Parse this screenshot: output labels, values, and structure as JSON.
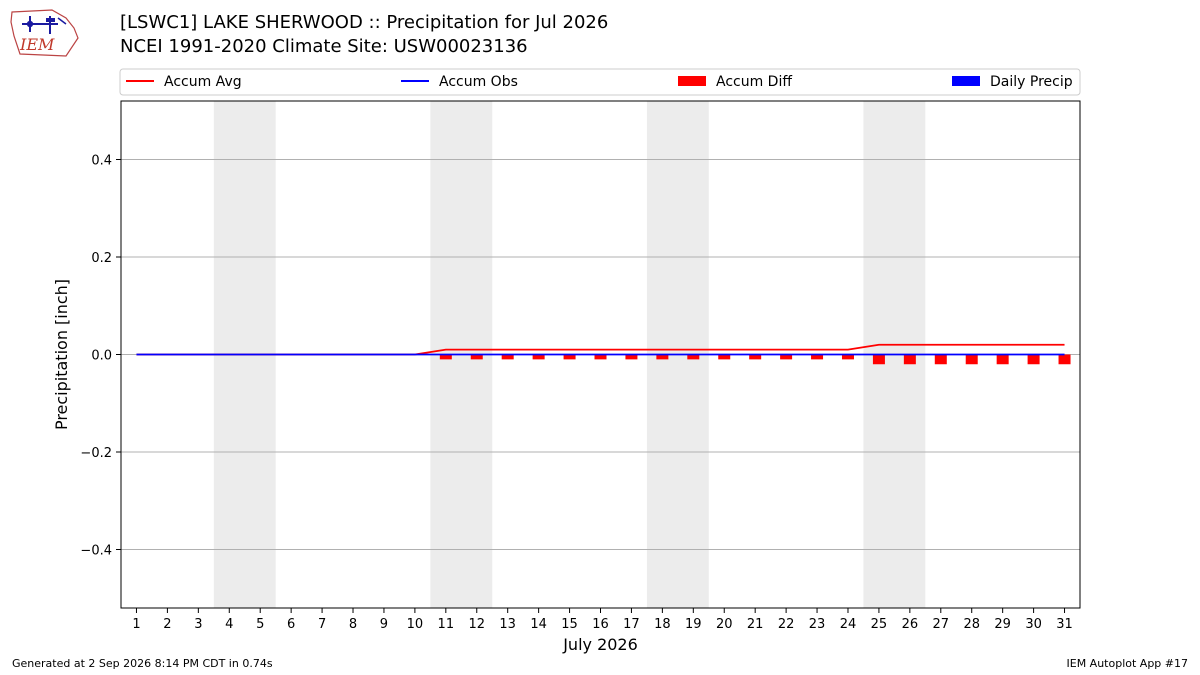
{
  "header": {
    "logo_text": "IEM",
    "title": "[LSWC1] LAKE SHERWOOD :: Precipitation for Jul 2026",
    "subtitle": "NCEI 1991-2020 Climate Site: USW00023136"
  },
  "footer": {
    "generated": "Generated at 2 Sep 2026 8:14 PM CDT in 0.74s",
    "app": "IEM Autoplot App #17"
  },
  "colors": {
    "accum_avg": "#ff0000",
    "accum_obs": "#0000ff",
    "accum_diff": "#ff0000",
    "daily_precip": "#0000ff",
    "weekend_band": "#ececec",
    "grid": "#b0b0b0"
  },
  "chart_data": {
    "type": "line",
    "xlabel": "July 2026",
    "ylabel": "Precipitation [inch]",
    "ylim": [
      -0.52,
      0.52
    ],
    "yticks": [
      -0.4,
      -0.2,
      0.0,
      0.2,
      0.4
    ],
    "ytick_labels": [
      "−0.4",
      "−0.2",
      "0.0",
      "0.2",
      "0.4"
    ],
    "x": [
      1,
      2,
      3,
      4,
      5,
      6,
      7,
      8,
      9,
      10,
      11,
      12,
      13,
      14,
      15,
      16,
      17,
      18,
      19,
      20,
      21,
      22,
      23,
      24,
      25,
      26,
      27,
      28,
      29,
      30,
      31
    ],
    "xtick_labels": [
      "1",
      "2",
      "3",
      "4",
      "5",
      "6",
      "7",
      "8",
      "9",
      "10",
      "11",
      "12",
      "13",
      "14",
      "15",
      "16",
      "17",
      "18",
      "19",
      "20",
      "21",
      "22",
      "23",
      "24",
      "25",
      "26",
      "27",
      "28",
      "29",
      "30",
      "31"
    ],
    "weekend_days": [
      [
        4,
        5
      ],
      [
        11,
        12
      ],
      [
        18,
        19
      ],
      [
        25,
        26
      ]
    ],
    "grid": "y",
    "legend": {
      "placement": "top, horizontal, above plot",
      "entries": [
        {
          "label": "Accum Avg",
          "kind": "line",
          "color": "#ff0000"
        },
        {
          "label": "Accum Obs",
          "kind": "line",
          "color": "#0000ff"
        },
        {
          "label": "Accum Diff",
          "kind": "bar",
          "color": "#ff0000"
        },
        {
          "label": "Daily Precip",
          "kind": "bar",
          "color": "#0000ff"
        }
      ]
    },
    "series": [
      {
        "name": "Accum Avg",
        "kind": "line",
        "values": [
          0,
          0,
          0,
          0,
          0,
          0,
          0,
          0,
          0,
          0,
          0.01,
          0.01,
          0.01,
          0.01,
          0.01,
          0.01,
          0.01,
          0.01,
          0.01,
          0.01,
          0.01,
          0.01,
          0.01,
          0.01,
          0.02,
          0.02,
          0.02,
          0.02,
          0.02,
          0.02,
          0.02
        ]
      },
      {
        "name": "Accum Obs",
        "kind": "line",
        "values": [
          0,
          0,
          0,
          0,
          0,
          0,
          0,
          0,
          0,
          0,
          0,
          0,
          0,
          0,
          0,
          0,
          0,
          0,
          0,
          0,
          0,
          0,
          0,
          0,
          0,
          0,
          0,
          0,
          0,
          0,
          0
        ]
      },
      {
        "name": "Accum Diff",
        "kind": "bar",
        "values": [
          0,
          0,
          0,
          0,
          0,
          0,
          0,
          0,
          0,
          0,
          -0.01,
          -0.01,
          -0.01,
          -0.01,
          -0.01,
          -0.01,
          -0.01,
          -0.01,
          -0.01,
          -0.01,
          -0.01,
          -0.01,
          -0.01,
          -0.01,
          -0.02,
          -0.02,
          -0.02,
          -0.02,
          -0.02,
          -0.02,
          -0.02
        ]
      },
      {
        "name": "Daily Precip",
        "kind": "bar",
        "values": [
          0,
          0,
          0,
          0,
          0,
          0,
          0,
          0,
          0,
          0,
          0,
          0,
          0,
          0,
          0,
          0,
          0,
          0,
          0,
          0,
          0,
          0,
          0,
          0,
          0,
          0,
          0,
          0,
          0,
          0,
          0
        ]
      }
    ]
  }
}
